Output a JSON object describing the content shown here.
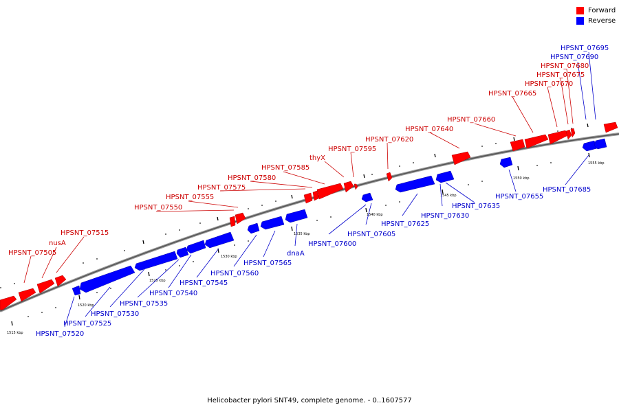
{
  "caption": "Helicobacter pylori SNT49, complete genome. - 0..1607577",
  "legend": [
    {
      "label": "Forward",
      "color": "#ff0000"
    },
    {
      "label": "Reverse",
      "color": "#0000ff"
    }
  ],
  "colors": {
    "forward": "#ff0000",
    "reverse": "#0000ff",
    "forward_label": "#cc0000",
    "reverse_label": "#0000cc"
  },
  "scale": {
    "unit": "kbp",
    "labels": [
      "1515 kbp",
      "1520 kbp",
      "1525 kbp",
      "1530 kbp",
      "1535 kbp",
      "1540 kbp",
      "1545 kbp",
      "1550 kbp",
      "1555 kbp"
    ]
  },
  "genes": {
    "forward": [
      "HPSNT_07505",
      "nusA",
      "HPSNT_07515",
      "HPSNT_07550",
      "HPSNT_07555",
      "HPSNT_07575",
      "HPSNT_07580",
      "HPSNT_07585",
      "thyX",
      "HPSNT_07595",
      "HPSNT_07620",
      "HPSNT_07640",
      "HPSNT_07660",
      "HPSNT_07665",
      "HPSNT_07670",
      "HPSNT_07675",
      "HPSNT_07680"
    ],
    "reverse": [
      "HPSNT_07520",
      "HPSNT_07525",
      "HPSNT_07530",
      "HPSNT_07535",
      "HPSNT_07540",
      "HPSNT_07545",
      "HPSNT_07560",
      "HPSNT_07565",
      "dnaA",
      "HPSNT_07600",
      "HPSNT_07605",
      "HPSNT_07625",
      "HPSNT_07630",
      "HPSNT_07635",
      "HPSNT_07655",
      "HPSNT_07685",
      "HPSNT_07690",
      "HPSNT_07695"
    ]
  }
}
